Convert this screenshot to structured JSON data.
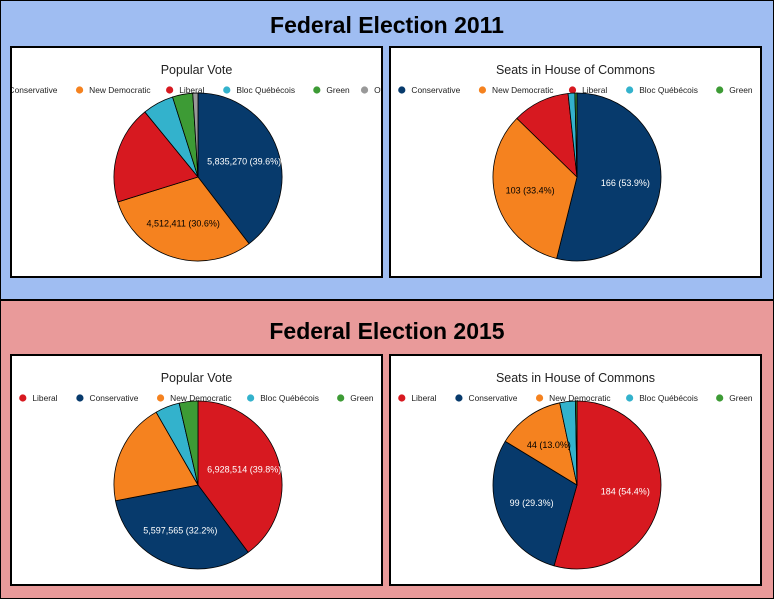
{
  "sections": [
    {
      "title": "Federal Election 2011",
      "background": "#9fbdf2",
      "charts": [
        {
          "type": "pie",
          "title": "Popular Vote",
          "slices": [
            {
              "name": "Conservative",
              "value": 39.6,
              "label": "5,835,270 (39.6%)",
              "color": "#073a6c",
              "label_color": "#ffffff"
            },
            {
              "name": "New Democratic",
              "value": 30.6,
              "label": "4,512,411 (30.6%)",
              "color": "#f5821f",
              "label_color": "#000000"
            },
            {
              "name": "Liberal",
              "value": 18.9,
              "label": "",
              "color": "#d71920",
              "label_color": "#ffffff"
            },
            {
              "name": "Bloc Québécois",
              "value": 6.0,
              "label": "",
              "color": "#33b2cc",
              "label_color": "#000000"
            },
            {
              "name": "Green",
              "value": 3.9,
              "label": "",
              "color": "#3d9b35",
              "label_color": "#ffffff"
            },
            {
              "name": "Other",
              "value": 1.0,
              "label": "",
              "color": "#999999",
              "label_color": "#000000"
            }
          ]
        },
        {
          "type": "pie",
          "title": "Seats in House of Commons",
          "slices": [
            {
              "name": "Conservative",
              "value": 53.9,
              "label": "166 (53.9%)",
              "color": "#073a6c",
              "label_color": "#ffffff"
            },
            {
              "name": "New Democratic",
              "value": 33.4,
              "label": "103 (33.4%)",
              "color": "#f5821f",
              "label_color": "#000000"
            },
            {
              "name": "Liberal",
              "value": 11.0,
              "label": "",
              "color": "#d71920",
              "label_color": "#ffffff"
            },
            {
              "name": "Bloc Québécois",
              "value": 1.3,
              "label": "",
              "color": "#33b2cc",
              "label_color": "#000000"
            },
            {
              "name": "Green",
              "value": 0.4,
              "label": "",
              "color": "#3d9b35",
              "label_color": "#ffffff"
            }
          ]
        }
      ]
    },
    {
      "title": "Federal Election 2015",
      "background": "#e99a9a",
      "charts": [
        {
          "type": "pie",
          "title": "Popular Vote",
          "slices": [
            {
              "name": "Liberal",
              "value": 39.8,
              "label": "6,928,514 (39.8%)",
              "color": "#d71920",
              "label_color": "#ffffff"
            },
            {
              "name": "Conservative",
              "value": 32.2,
              "label": "5,597,565 (32.2%)",
              "color": "#073a6c",
              "label_color": "#ffffff"
            },
            {
              "name": "New Democratic",
              "value": 19.7,
              "label": "",
              "color": "#f5821f",
              "label_color": "#000000"
            },
            {
              "name": "Bloc Québécois",
              "value": 4.7,
              "label": "",
              "color": "#33b2cc",
              "label_color": "#000000"
            },
            {
              "name": "Green",
              "value": 3.6,
              "label": "",
              "color": "#3d9b35",
              "label_color": "#ffffff"
            }
          ]
        },
        {
          "type": "pie",
          "title": "Seats in House of Commons",
          "slices": [
            {
              "name": "Liberal",
              "value": 54.4,
              "label": "184 (54.4%)",
              "color": "#d71920",
              "label_color": "#ffffff"
            },
            {
              "name": "Conservative",
              "value": 29.3,
              "label": "99 (29.3%)",
              "color": "#073a6c",
              "label_color": "#ffffff"
            },
            {
              "name": "New Democratic",
              "value": 13.0,
              "label": "44 (13.0%)",
              "color": "#f5821f",
              "label_color": "#000000"
            },
            {
              "name": "Bloc Québécois",
              "value": 3.0,
              "label": "",
              "color": "#33b2cc",
              "label_color": "#000000"
            },
            {
              "name": "Green",
              "value": 0.3,
              "label": "",
              "color": "#3d9b35",
              "label_color": "#ffffff"
            }
          ]
        }
      ]
    }
  ]
}
